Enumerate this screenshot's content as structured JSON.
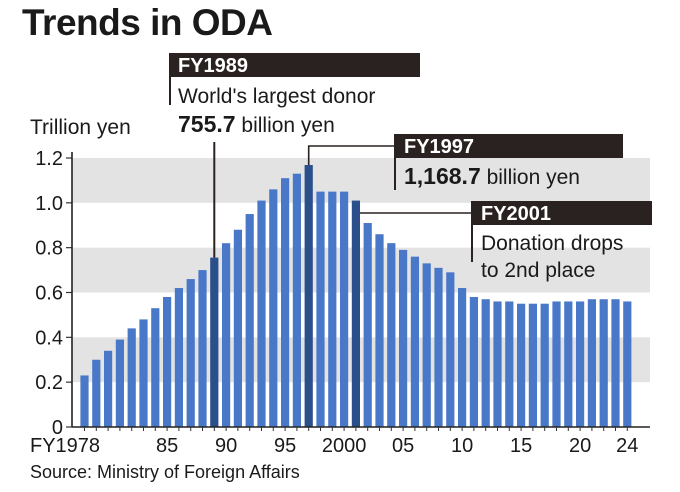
{
  "title": "Trends in ODA",
  "source": "Source: Ministry of Foreign Affairs",
  "chart_data": {
    "type": "bar",
    "ylabel": "Trillion yen",
    "ylim": [
      0,
      1.2
    ],
    "yticks": [
      "0",
      "0.2",
      "0.4",
      "0.6",
      "0.8",
      "1.0",
      "1.2"
    ],
    "grid_bands": true,
    "x": [
      1978,
      1979,
      1980,
      1981,
      1982,
      1983,
      1984,
      1985,
      1986,
      1987,
      1988,
      1989,
      1990,
      1991,
      1992,
      1993,
      1994,
      1995,
      1996,
      1997,
      1998,
      1999,
      2000,
      2001,
      2002,
      2003,
      2004,
      2005,
      2006,
      2007,
      2008,
      2009,
      2010,
      2011,
      2012,
      2013,
      2014,
      2015,
      2016,
      2017,
      2018,
      2019,
      2020,
      2021,
      2022,
      2023,
      2024
    ],
    "xticklabels": [
      {
        "x": 1978,
        "label": "FY1978"
      },
      {
        "x": 1985,
        "label": "85"
      },
      {
        "x": 1990,
        "label": "90"
      },
      {
        "x": 1995,
        "label": "95"
      },
      {
        "x": 2000,
        "label": "2000"
      },
      {
        "x": 2005,
        "label": "05"
      },
      {
        "x": 2010,
        "label": "10"
      },
      {
        "x": 2015,
        "label": "15"
      },
      {
        "x": 2020,
        "label": "20"
      },
      {
        "x": 2024,
        "label": "24"
      }
    ],
    "values": [
      0.23,
      0.3,
      0.34,
      0.39,
      0.44,
      0.48,
      0.53,
      0.58,
      0.62,
      0.66,
      0.7,
      0.7557,
      0.82,
      0.88,
      0.95,
      1.01,
      1.06,
      1.11,
      1.13,
      1.1687,
      1.05,
      1.05,
      1.05,
      1.01,
      0.91,
      0.86,
      0.82,
      0.79,
      0.76,
      0.73,
      0.71,
      0.69,
      0.62,
      0.58,
      0.57,
      0.56,
      0.56,
      0.55,
      0.55,
      0.55,
      0.56,
      0.56,
      0.56,
      0.57,
      0.57,
      0.57,
      0.56
    ],
    "highlights": [
      1989,
      1997,
      2001
    ],
    "colors": {
      "bar": "#4a78c8",
      "bar_highlight": "#2a4f8a",
      "band": "#e3e3e3",
      "label_box": "#2a2220",
      "text": "#1a1a1a"
    },
    "annotations": [
      {
        "x": 1989,
        "tag": "FY1989",
        "line1": "World's largest donor",
        "value": "755.7",
        "unit": " billion yen"
      },
      {
        "x": 1997,
        "tag": "FY1997",
        "value": "1,168.7",
        "unit": " billion yen"
      },
      {
        "x": 2001,
        "tag": "FY2001",
        "line1": "Donation drops",
        "line2": "to 2nd place"
      }
    ]
  }
}
